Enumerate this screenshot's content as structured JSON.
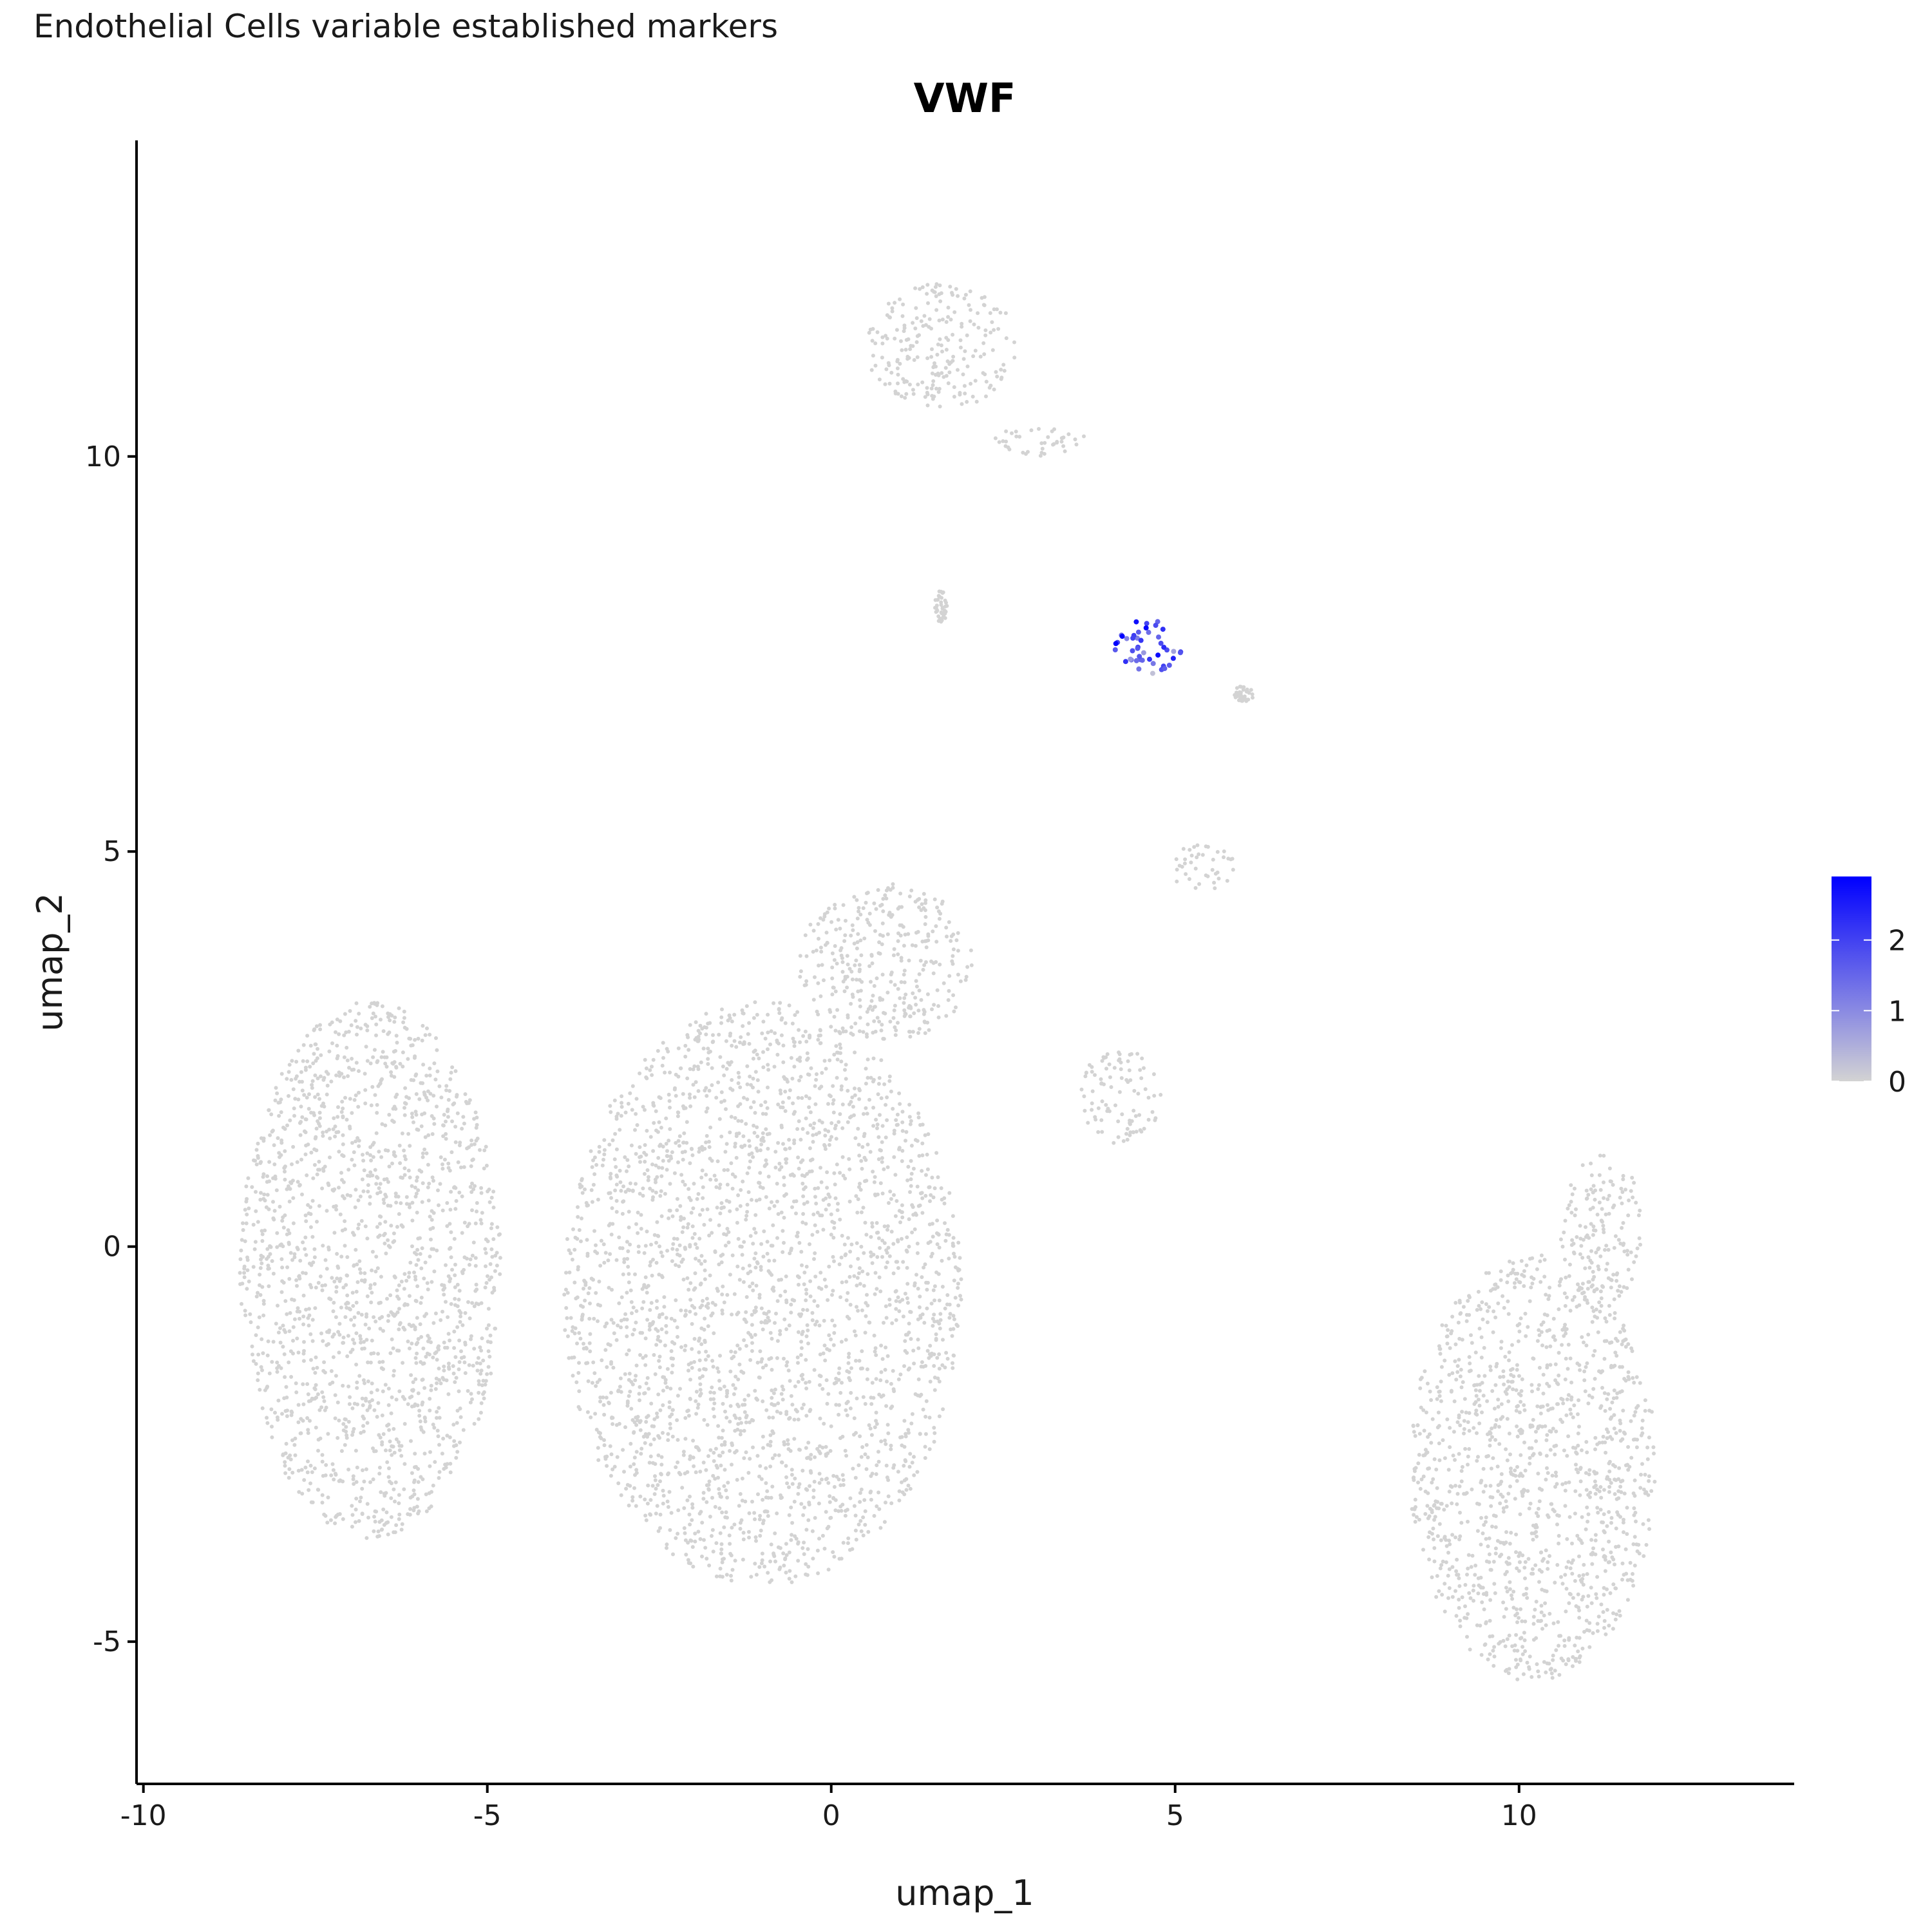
{
  "subtitle": "Endothelial Cells variable established markers",
  "chart_data": {
    "type": "scatter",
    "title": "VWF",
    "xlabel": "umap_1",
    "ylabel": "umap_2",
    "xlim": [
      -10.1,
      14.0
    ],
    "ylim": [
      -6.8,
      14.0
    ],
    "x_ticks": [
      -10,
      -5,
      0,
      5,
      10
    ],
    "x_tick_labels": [
      "-10",
      "-5",
      "0",
      "5",
      "10"
    ],
    "y_ticks": [
      -5,
      0,
      5,
      10
    ],
    "y_tick_labels": [
      "-5",
      "0",
      "5",
      "10"
    ],
    "grid": false,
    "legend": {
      "placement": "right",
      "type": "colorbar",
      "min": 0,
      "max": 2.9,
      "ticks": [
        0,
        1,
        2
      ],
      "tick_labels": [
        "0",
        "1",
        "2"
      ],
      "low_color": "#d3d3d3",
      "high_color": "#0000ff"
    },
    "point_color": "#d3d3d3",
    "clusters": [
      {
        "name": "left-large",
        "cx": -6.7,
        "cy": -0.3,
        "rx": 1.9,
        "ry": 3.4,
        "expression": 0.0
      },
      {
        "name": "center-large",
        "cx": -1.0,
        "cy": -0.6,
        "rx": 2.9,
        "ry": 3.7,
        "expression": 0.0
      },
      {
        "name": "center-top-lobe",
        "cx": 0.8,
        "cy": 3.6,
        "rx": 1.3,
        "ry": 1.0,
        "expression": 0.0
      },
      {
        "name": "right-bottom",
        "cx": 10.2,
        "cy": -2.8,
        "rx": 1.8,
        "ry": 2.7,
        "expression": 0.0
      },
      {
        "name": "right-bottom-arm",
        "cx": 11.2,
        "cy": 0.2,
        "rx": 0.6,
        "ry": 1.0,
        "expression": 0.0
      },
      {
        "name": "top",
        "cx": 1.6,
        "cy": 11.4,
        "rx": 1.1,
        "ry": 0.8,
        "expression": 0.0
      },
      {
        "name": "top-tail",
        "cx": 3.0,
        "cy": 10.2,
        "rx": 0.7,
        "ry": 0.2,
        "expression": 0.0
      },
      {
        "name": "middle-ring",
        "cx": 4.2,
        "cy": 1.9,
        "rx": 0.6,
        "ry": 0.6,
        "expression": 0.0
      },
      {
        "name": "middle-arc",
        "cx": 5.4,
        "cy": 4.8,
        "rx": 0.5,
        "ry": 0.3,
        "expression": 0.0
      },
      {
        "name": "small-mid",
        "cx": 1.6,
        "cy": 8.1,
        "rx": 0.1,
        "ry": 0.2,
        "expression": 0.0
      },
      {
        "name": "endothelial",
        "cx": 4.6,
        "cy": 7.6,
        "rx": 0.5,
        "ry": 0.35,
        "expression": 1.8
      },
      {
        "name": "endothelial-side",
        "cx": 6.0,
        "cy": 7.0,
        "rx": 0.15,
        "ry": 0.1,
        "expression": 0.0
      }
    ]
  }
}
